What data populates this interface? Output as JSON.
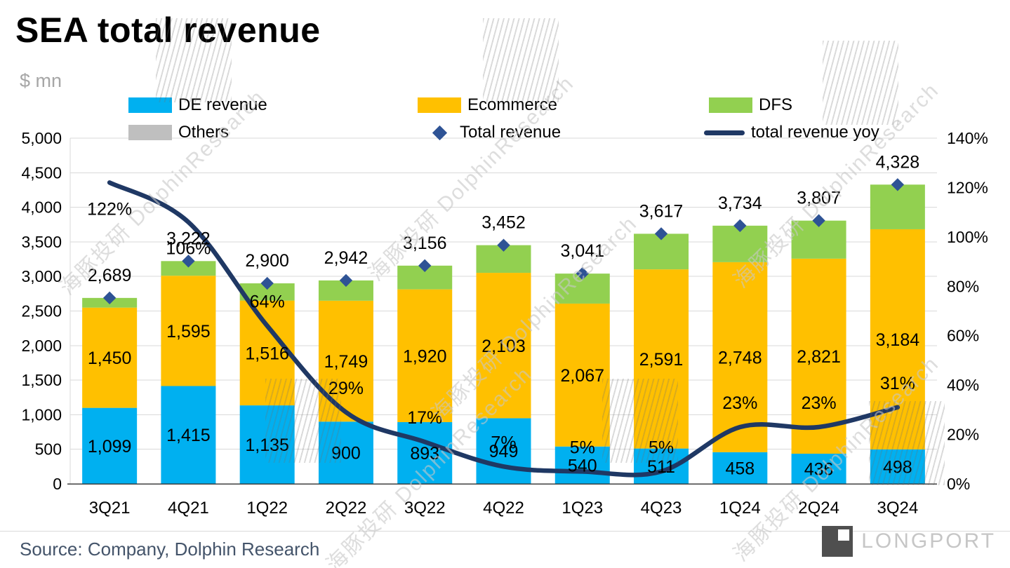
{
  "page": {
    "title": "SEA total revenue",
    "unit": "$ mn",
    "source": "Source: Company, Dolphin Research"
  },
  "watermark": {
    "text": "海豚投研 DolphinResearch"
  },
  "logo": {
    "text": "LONGPORT"
  },
  "legend": {
    "items": [
      {
        "label": "DE revenue",
        "swatch": "rect",
        "color": "#00B0F0"
      },
      {
        "label": "Ecommerce",
        "swatch": "rect",
        "color": "#FFC000"
      },
      {
        "label": "DFS",
        "swatch": "rect",
        "color": "#92D050"
      },
      {
        "label": "Others",
        "swatch": "rect",
        "color": "#BFBFBF"
      },
      {
        "label": "Total revenue",
        "swatch": "diamond",
        "color": "#2E5395"
      },
      {
        "label": "total revenue yoy",
        "swatch": "line",
        "color": "#1F3864"
      }
    ]
  },
  "chart_data": {
    "type": "bar",
    "subtype": "stacked-column-with-yoy-line",
    "title": "SEA total revenue",
    "ylabel_left": "$ mn",
    "grid": true,
    "legend_position": "top",
    "categories": [
      "3Q21",
      "4Q21",
      "1Q22",
      "2Q22",
      "3Q22",
      "4Q22",
      "1Q23",
      "4Q23",
      "1Q24",
      "2Q24",
      "3Q24"
    ],
    "series": [
      {
        "name": "DE revenue",
        "color": "#00B0F0",
        "labels_shown": true,
        "values": [
          1099,
          1415,
          1135,
          900,
          893,
          949,
          540,
          511,
          458,
          436,
          498
        ]
      },
      {
        "name": "Ecommerce",
        "color": "#FFC000",
        "labels_shown": true,
        "values": [
          1450,
          1595,
          1516,
          1749,
          1920,
          2103,
          2067,
          2591,
          2748,
          2821,
          3184
        ]
      },
      {
        "name": "DFS",
        "color": "#92D050",
        "labels_shown": false,
        "values": [
          140,
          212,
          249,
          293,
          343,
          400,
          434,
          515,
          528,
          550,
          646
        ]
      },
      {
        "name": "Others",
        "color": "#BFBFBF",
        "labels_shown": false,
        "values": [
          0,
          0,
          0,
          0,
          0,
          0,
          0,
          0,
          0,
          0,
          0
        ]
      }
    ],
    "totals": [
      2689,
      3222,
      2900,
      2942,
      3156,
      3452,
      3041,
      3617,
      3734,
      3807,
      4328
    ],
    "total_marker": {
      "name": "Total revenue",
      "shape": "diamond",
      "color": "#2E5395"
    },
    "yoy": {
      "name": "total revenue yoy",
      "color": "#1F3864",
      "values_percent": [
        122,
        106,
        64,
        29,
        17,
        7,
        5,
        5,
        23,
        23,
        31
      ],
      "labels": [
        "122%",
        "106%",
        "64%",
        "29%",
        "17%",
        "7%",
        "5%",
        "5%",
        "23%",
        "23%",
        "31%"
      ]
    },
    "left_axis": {
      "min": 0,
      "max": 5000,
      "step": 500,
      "tick_labels": [
        "0",
        "500",
        "1,000",
        "1,500",
        "2,000",
        "2,500",
        "3,000",
        "3,500",
        "4,000",
        "4,500",
        "5,000"
      ]
    },
    "right_axis": {
      "min": 0,
      "max": 140,
      "step": 20,
      "unit": "%",
      "tick_labels": [
        "0%",
        "20%",
        "40%",
        "60%",
        "80%",
        "100%",
        "120%",
        "140%"
      ]
    },
    "colors": {
      "grid": "#D9D9D9",
      "axis_line": "#404040",
      "text": "#000000"
    }
  }
}
